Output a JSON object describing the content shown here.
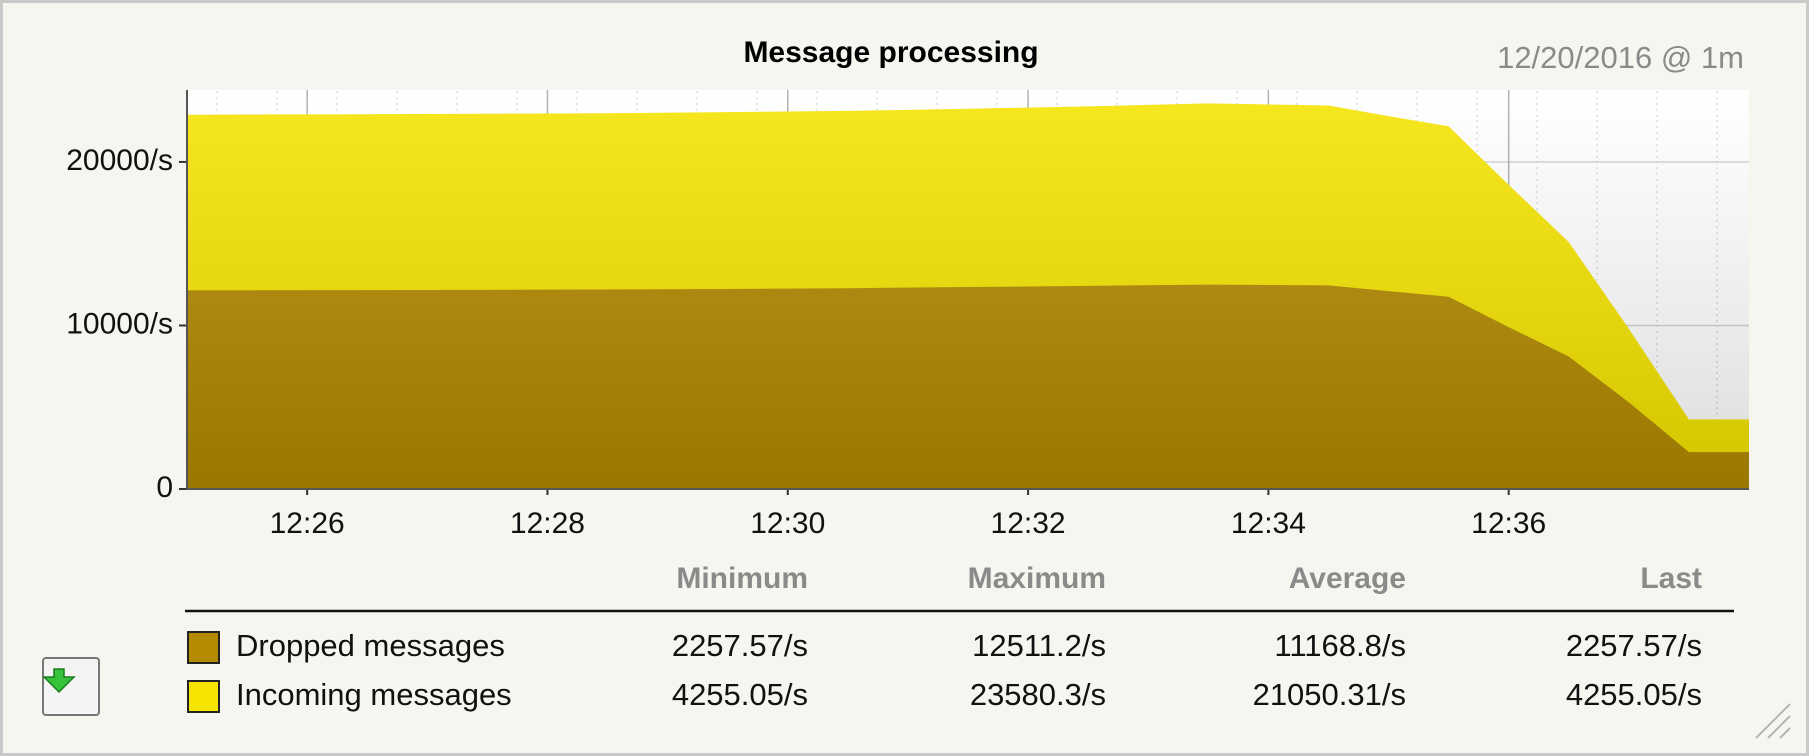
{
  "chart_data": {
    "type": "area",
    "title": "Message processing",
    "subtitle": "12/20/2016 @ 1m",
    "x": [
      "12:25",
      "12:25:30",
      "12:26:30",
      "12:27:30",
      "12:28:30",
      "12:29:30",
      "12:30:30",
      "12:31:30",
      "12:32:30",
      "12:33:30",
      "12:34:30",
      "12:35",
      "12:35:30",
      "12:36",
      "12:36:30",
      "12:37",
      "12:37:30",
      "12:38"
    ],
    "xlim": [
      "12:25",
      "12:38"
    ],
    "xticks": [
      "12:26",
      "12:28",
      "12:30",
      "12:32",
      "12:34",
      "12:36"
    ],
    "ylim": [
      0,
      24400
    ],
    "yticks": [
      0,
      {
        "value": 10000,
        "label": "10000/s"
      },
      {
        "value": 20000,
        "label": "20000/s"
      }
    ],
    "grid": true,
    "series": [
      {
        "name": "Dropped messages",
        "color": "#b38a00",
        "values": [
          12150,
          12150,
          12160,
          12180,
          12200,
          12230,
          12280,
          12350,
          12420,
          12500,
          12450,
          12100,
          11760,
          9900,
          8100,
          5300,
          2258,
          2258
        ]
      },
      {
        "name": "Incoming messages",
        "color": "#f5e400",
        "values": [
          22890,
          22900,
          22920,
          22950,
          22980,
          23050,
          23120,
          23250,
          23400,
          23580,
          23450,
          22800,
          22180,
          18600,
          15100,
          9800,
          4255,
          4255
        ]
      }
    ],
    "table": {
      "columns": [
        "Minimum",
        "Maximum",
        "Average",
        "Last"
      ],
      "rows": [
        [
          "2257.57/s",
          "12511.2/s",
          "11168.8/s",
          "2257.57/s"
        ],
        [
          "4255.05/s",
          "23580.3/s",
          "21050.31/s",
          "4255.05/s"
        ]
      ]
    }
  }
}
